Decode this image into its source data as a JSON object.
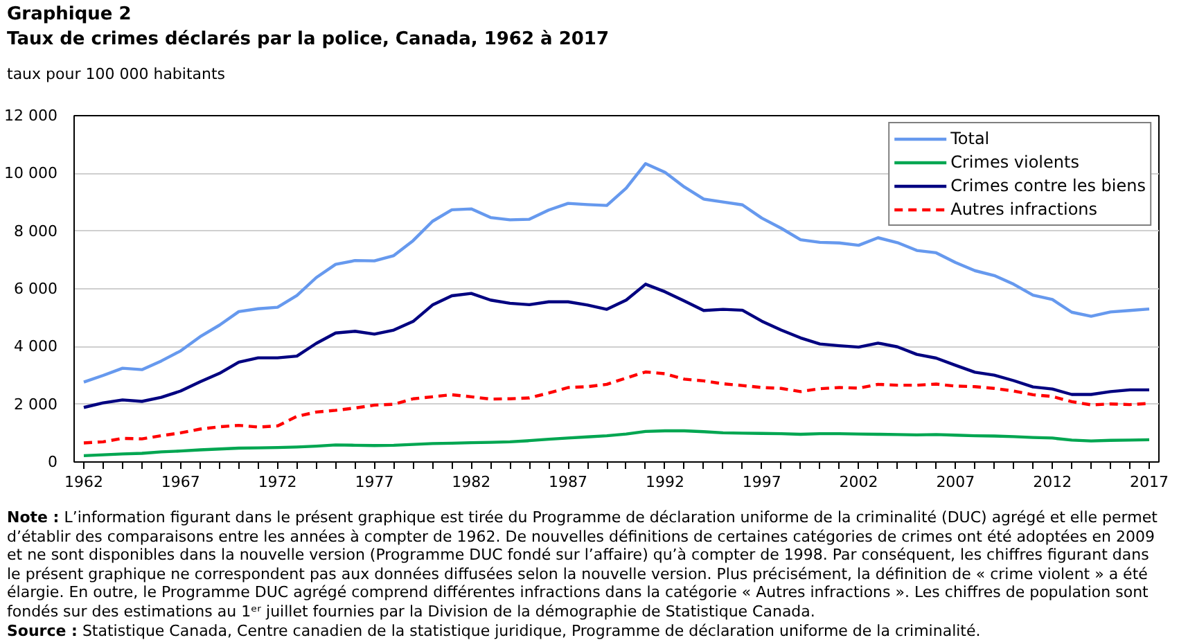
{
  "chart_data": {
    "type": "line",
    "title": "Graphique 2",
    "subtitle": "Taux de crimes déclarés par la police, Canada, 1962 à 2017",
    "ylabel": "taux pour 100 000 habitants",
    "x": [
      1962,
      1963,
      1964,
      1965,
      1966,
      1967,
      1968,
      1969,
      1970,
      1971,
      1972,
      1973,
      1974,
      1975,
      1976,
      1977,
      1978,
      1979,
      1980,
      1981,
      1982,
      1983,
      1984,
      1985,
      1986,
      1987,
      1988,
      1989,
      1990,
      1991,
      1992,
      1993,
      1994,
      1995,
      1996,
      1997,
      1998,
      1999,
      2000,
      2001,
      2002,
      2003,
      2004,
      2005,
      2006,
      2007,
      2008,
      2009,
      2010,
      2011,
      2012,
      2013,
      2014,
      2015,
      2016,
      2017
    ],
    "series": [
      {
        "name": "Total",
        "color": "#6699ee",
        "values": [
          2770,
          3000,
          3250,
          3200,
          3500,
          3850,
          4340,
          4740,
          5210,
          5310,
          5360,
          5770,
          6390,
          6850,
          6980,
          6970,
          7150,
          7670,
          8340,
          8740,
          8770,
          8470,
          8390,
          8410,
          8730,
          8960,
          8920,
          8890,
          9490,
          10340,
          10040,
          9530,
          9110,
          9010,
          8910,
          8450,
          8100,
          7700,
          7610,
          7590,
          7510,
          7770,
          7600,
          7330,
          7250,
          6910,
          6630,
          6460,
          6160,
          5780,
          5630,
          5190,
          5050,
          5200,
          5250,
          5300
        ]
      },
      {
        "name": "Crimes violents",
        "color": "#00a651",
        "values": [
          220,
          250,
          280,
          300,
          350,
          380,
          420,
          450,
          480,
          490,
          500,
          520,
          550,
          590,
          580,
          570,
          580,
          610,
          640,
          650,
          670,
          680,
          700,
          740,
          790,
          830,
          870,
          910,
          970,
          1060,
          1080,
          1080,
          1050,
          1010,
          1000,
          990,
          980,
          960,
          980,
          980,
          970,
          960,
          950,
          940,
          950,
          930,
          910,
          900,
          880,
          850,
          830,
          760,
          730,
          750,
          760,
          770
        ]
      },
      {
        "name": "Crimes contre les biens",
        "color": "#000080",
        "values": [
          1890,
          2050,
          2150,
          2100,
          2240,
          2460,
          2780,
          3070,
          3460,
          3610,
          3610,
          3670,
          4110,
          4470,
          4530,
          4430,
          4570,
          4870,
          5440,
          5760,
          5840,
          5610,
          5500,
          5450,
          5550,
          5550,
          5440,
          5290,
          5610,
          6160,
          5900,
          5580,
          5250,
          5290,
          5260,
          4880,
          4570,
          4300,
          4090,
          4030,
          3980,
          4120,
          3990,
          3730,
          3600,
          3350,
          3110,
          3010,
          2820,
          2600,
          2530,
          2340,
          2340,
          2440,
          2500,
          2500
        ]
      },
      {
        "name": "Autres infractions",
        "color": "#ff0000",
        "line_style": "dashed",
        "values": [
          660,
          700,
          820,
          800,
          910,
          1010,
          1140,
          1220,
          1270,
          1210,
          1250,
          1580,
          1730,
          1790,
          1870,
          1970,
          2000,
          2190,
          2260,
          2330,
          2260,
          2180,
          2190,
          2220,
          2390,
          2580,
          2610,
          2690,
          2910,
          3120,
          3060,
          2870,
          2810,
          2710,
          2650,
          2580,
          2550,
          2440,
          2540,
          2580,
          2560,
          2690,
          2660,
          2660,
          2700,
          2630,
          2610,
          2550,
          2460,
          2330,
          2270,
          2090,
          1980,
          2010,
          1990,
          2030
        ]
      }
    ],
    "xlim": [
      1961.5,
      2017.5
    ],
    "xticks": [
      1962,
      {
        "value": 1963,
        "label": null
      },
      {
        "value": 1964,
        "label": null
      },
      {
        "value": 1965,
        "label": null
      },
      {
        "value": 1966,
        "label": null
      },
      1967,
      {
        "value": 1968,
        "label": null
      },
      {
        "value": 1969,
        "label": null
      },
      {
        "value": 1970,
        "label": null
      },
      {
        "value": 1971,
        "label": null
      },
      1972,
      {
        "value": 1973,
        "label": null
      },
      {
        "value": 1974,
        "label": null
      },
      {
        "value": 1975,
        "label": null
      },
      {
        "value": 1976,
        "label": null
      },
      1977,
      {
        "value": 1978,
        "label": null
      },
      {
        "value": 1979,
        "label": null
      },
      {
        "value": 1980,
        "label": null
      },
      {
        "value": 1981,
        "label": null
      },
      1982,
      {
        "value": 1983,
        "label": null
      },
      {
        "value": 1984,
        "label": null
      },
      {
        "value": 1985,
        "label": null
      },
      {
        "value": 1986,
        "label": null
      },
      1987,
      {
        "value": 1988,
        "label": null
      },
      {
        "value": 1989,
        "label": null
      },
      {
        "value": 1990,
        "label": null
      },
      {
        "value": 1991,
        "label": null
      },
      1992,
      {
        "value": 1993,
        "label": null
      },
      {
        "value": 1994,
        "label": null
      },
      {
        "value": 1995,
        "label": null
      },
      {
        "value": 1996,
        "label": null
      },
      1997,
      {
        "value": 1998,
        "label": null
      },
      {
        "value": 1999,
        "label": null
      },
      {
        "value": 2000,
        "label": null
      },
      {
        "value": 2001,
        "label": null
      },
      2002,
      {
        "value": 2003,
        "label": null
      },
      {
        "value": 2004,
        "label": null
      },
      {
        "value": 2005,
        "label": null
      },
      {
        "value": 2006,
        "label": null
      },
      2007,
      {
        "value": 2008,
        "label": null
      },
      {
        "value": 2009,
        "label": null
      },
      {
        "value": 2010,
        "label": null
      },
      {
        "value": 2011,
        "label": null
      },
      2012,
      {
        "value": 2013,
        "label": null
      },
      {
        "value": 2014,
        "label": null
      },
      {
        "value": 2015,
        "label": null
      },
      {
        "value": 2016,
        "label": null
      },
      2017
    ],
    "ylim": [
      0,
      12000
    ],
    "yticks": [
      0,
      {
        "value": 2000,
        "label": "2 000"
      },
      {
        "value": 4000,
        "label": "4 000"
      },
      {
        "value": 6000,
        "label": "6 000"
      },
      {
        "value": 8000,
        "label": "8 000"
      },
      {
        "value": 10000,
        "label": "10 000"
      },
      {
        "value": 12000,
        "label": "12 000"
      }
    ],
    "grid": "y",
    "legend": "top right",
    "line_style": "solid",
    "annotations": [
      "Note : L’information figurant dans le présent graphique est tirée du Programme de déclaration uniforme de la criminalité (DUC) agrégé et elle permet d’établir des comparaisons entre les années à compter de 1962. De nouvelles définitions de certaines catégories de crimes ont été adoptées en 2009 et ne sont disponibles dans la nouvelle version (Programme DUC fondé sur l’affaire) qu’à compter de 1998. Par conséquent, les chiffres figurant dans le présent graphique ne correspondent pas aux données diffusées selon la nouvelle version. Plus précisément, la définition de « crime violent » a été élargie. En outre, le Programme DUC agrégé comprend différentes infractions dans la catégorie « Autres infractions ». Les chiffres de population sont fondés sur des estimations au 1ᵉʳ juillet fournies par la Division de la démographie de Statistique Canada.",
      "Source : Statistique Canada, Centre canadien de la statistique juridique, Programme de déclaration uniforme de la criminalité."
    ]
  }
}
